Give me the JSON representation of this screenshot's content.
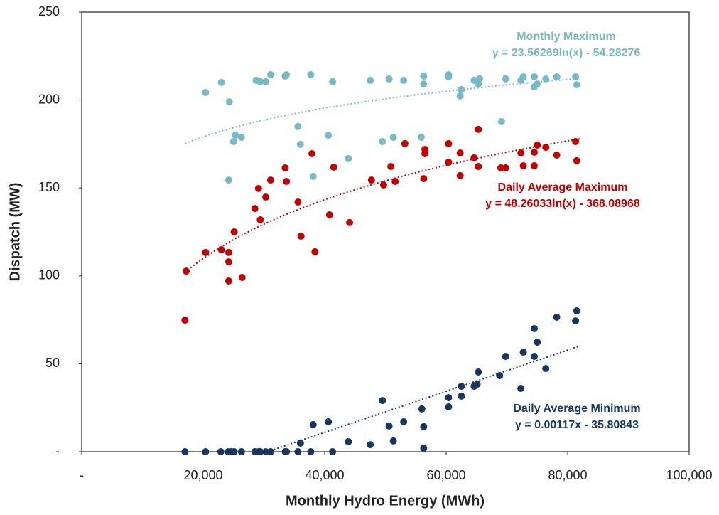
{
  "chart_data": {
    "type": "scatter",
    "xlabel": "Monthly Hydro Energy (MWh)",
    "ylabel": "Dispatch (MW)",
    "xlim": [
      0,
      100000
    ],
    "xticks": [
      {
        "value": 0,
        "label": "-"
      },
      {
        "value": 20000,
        "label": "20,000"
      },
      {
        "value": 40000,
        "label": "40,000"
      },
      {
        "value": 60000,
        "label": "60,000"
      },
      {
        "value": 80000,
        "label": "80,000"
      },
      {
        "value": 100000,
        "label": "100,000"
      }
    ],
    "ylim": [
      0,
      250
    ],
    "yticks": [
      {
        "value": 0,
        "label": "-"
      },
      50,
      100,
      150,
      200,
      250
    ],
    "grid": false,
    "series": [
      {
        "name": "Monthly Maximum",
        "color": "#77b9c4",
        "trendline": {
          "equation": "y = 23.56269ln(x) - 54.28276",
          "kind": "log",
          "coefficients": [
            23.56269,
            -54.28276
          ],
          "xrange": [
            17000,
            82000
          ]
        },
        "x": [
          17200,
          20400,
          23000,
          24300,
          25000,
          25300,
          26300,
          24200,
          28700,
          29400,
          30300,
          31100,
          33500,
          33700,
          35600,
          36000,
          37700,
          38100,
          40600,
          41300,
          43900,
          47500,
          49500,
          50600,
          51300,
          53000,
          56300,
          56300,
          55900,
          60400,
          60400,
          62500,
          62300,
          64600,
          65300,
          65500,
          69100,
          69800,
          72300,
          72700,
          74500,
          74500,
          75000,
          76400,
          78200,
          81300,
          81500
        ],
        "values": [
          102.7,
          204.3,
          210,
          199,
          176.4,
          180,
          178.8,
          154.5,
          211.2,
          210.4,
          210.4,
          214.4,
          213.6,
          214.4,
          184.9,
          174.8,
          214.4,
          156.6,
          180,
          210.4,
          166.7,
          211.2,
          176.4,
          212,
          178.8,
          211.2,
          213.6,
          209.1,
          178.8,
          213.2,
          214.4,
          205.9,
          202.3,
          211.2,
          209.1,
          212,
          187.7,
          212,
          211.2,
          213.2,
          213.2,
          207.5,
          209.1,
          212,
          213.2,
          213.2,
          208.7
        ]
      },
      {
        "name": "Daily Average Maximum",
        "color": "#c00000",
        "trendline": {
          "equation": "y = 48.26033ln(x) - 368.08968",
          "kind": "log",
          "coefficients": [
            48.26033,
            -368.08968
          ],
          "xrange": [
            17000,
            82000
          ]
        },
        "x": [
          17000,
          17200,
          20400,
          23000,
          24200,
          24200,
          24200,
          25100,
          26400,
          28500,
          29100,
          29400,
          30300,
          31100,
          33500,
          33700,
          35600,
          36100,
          37900,
          38400,
          40800,
          41500,
          44100,
          47700,
          49700,
          50900,
          51600,
          53200,
          56300,
          56500,
          56500,
          60400,
          60400,
          62300,
          62300,
          64600,
          65300,
          65300,
          69000,
          69800,
          72300,
          72700,
          74500,
          74500,
          75000,
          76400,
          78200,
          81300,
          81500
        ],
        "values": [
          74.8,
          102.7,
          113.3,
          114.9,
          113.3,
          108,
          97.1,
          125,
          99.1,
          138.3,
          149.7,
          131.9,
          144.8,
          154.5,
          161.4,
          153.7,
          142,
          122.6,
          169.5,
          113.7,
          134.7,
          161.8,
          130.3,
          154.5,
          151.7,
          162.2,
          153.7,
          175.2,
          155.3,
          171.9,
          169.5,
          175.2,
          164.6,
          169.9,
          157,
          167.1,
          183.3,
          162.2,
          161.4,
          161.4,
          169.9,
          162.6,
          162.6,
          170.3,
          174.4,
          173.1,
          168.7,
          176.4,
          165.5
        ]
      },
      {
        "name": "Daily Average Minimum",
        "color": "#17375e",
        "trendline": {
          "equation": "y = 0.00117x - 35.80843",
          "kind": "linear",
          "coefficients": [
            0.00117,
            -35.80843
          ],
          "xrange": [
            17000,
            82000
          ]
        },
        "x": [
          17000,
          20400,
          22900,
          24100,
          24600,
          25100,
          26300,
          28500,
          29100,
          29400,
          30300,
          31100,
          33500,
          33700,
          35600,
          37700,
          41300,
          36000,
          38100,
          40600,
          43900,
          47500,
          49500,
          50600,
          51300,
          53000,
          56000,
          56300,
          56300,
          60400,
          60400,
          62500,
          62500,
          64600,
          65100,
          65300,
          68800,
          69800,
          72300,
          72700,
          74500,
          74500,
          75000,
          76400,
          78200,
          81300,
          81500
        ],
        "values": [
          0,
          0,
          0,
          0,
          0,
          0,
          0,
          0,
          0,
          0,
          0,
          0,
          0,
          0,
          0,
          0,
          0,
          4.9,
          15.4,
          17,
          5.7,
          4,
          29.1,
          14.6,
          6.1,
          17,
          24.3,
          14.2,
          2,
          25.5,
          30.7,
          37.2,
          31.6,
          37.2,
          38.4,
          45.3,
          43.3,
          54.2,
          36,
          56.6,
          54.2,
          70,
          62.3,
          47.3,
          76.5,
          74.4,
          80.1
        ]
      }
    ]
  }
}
